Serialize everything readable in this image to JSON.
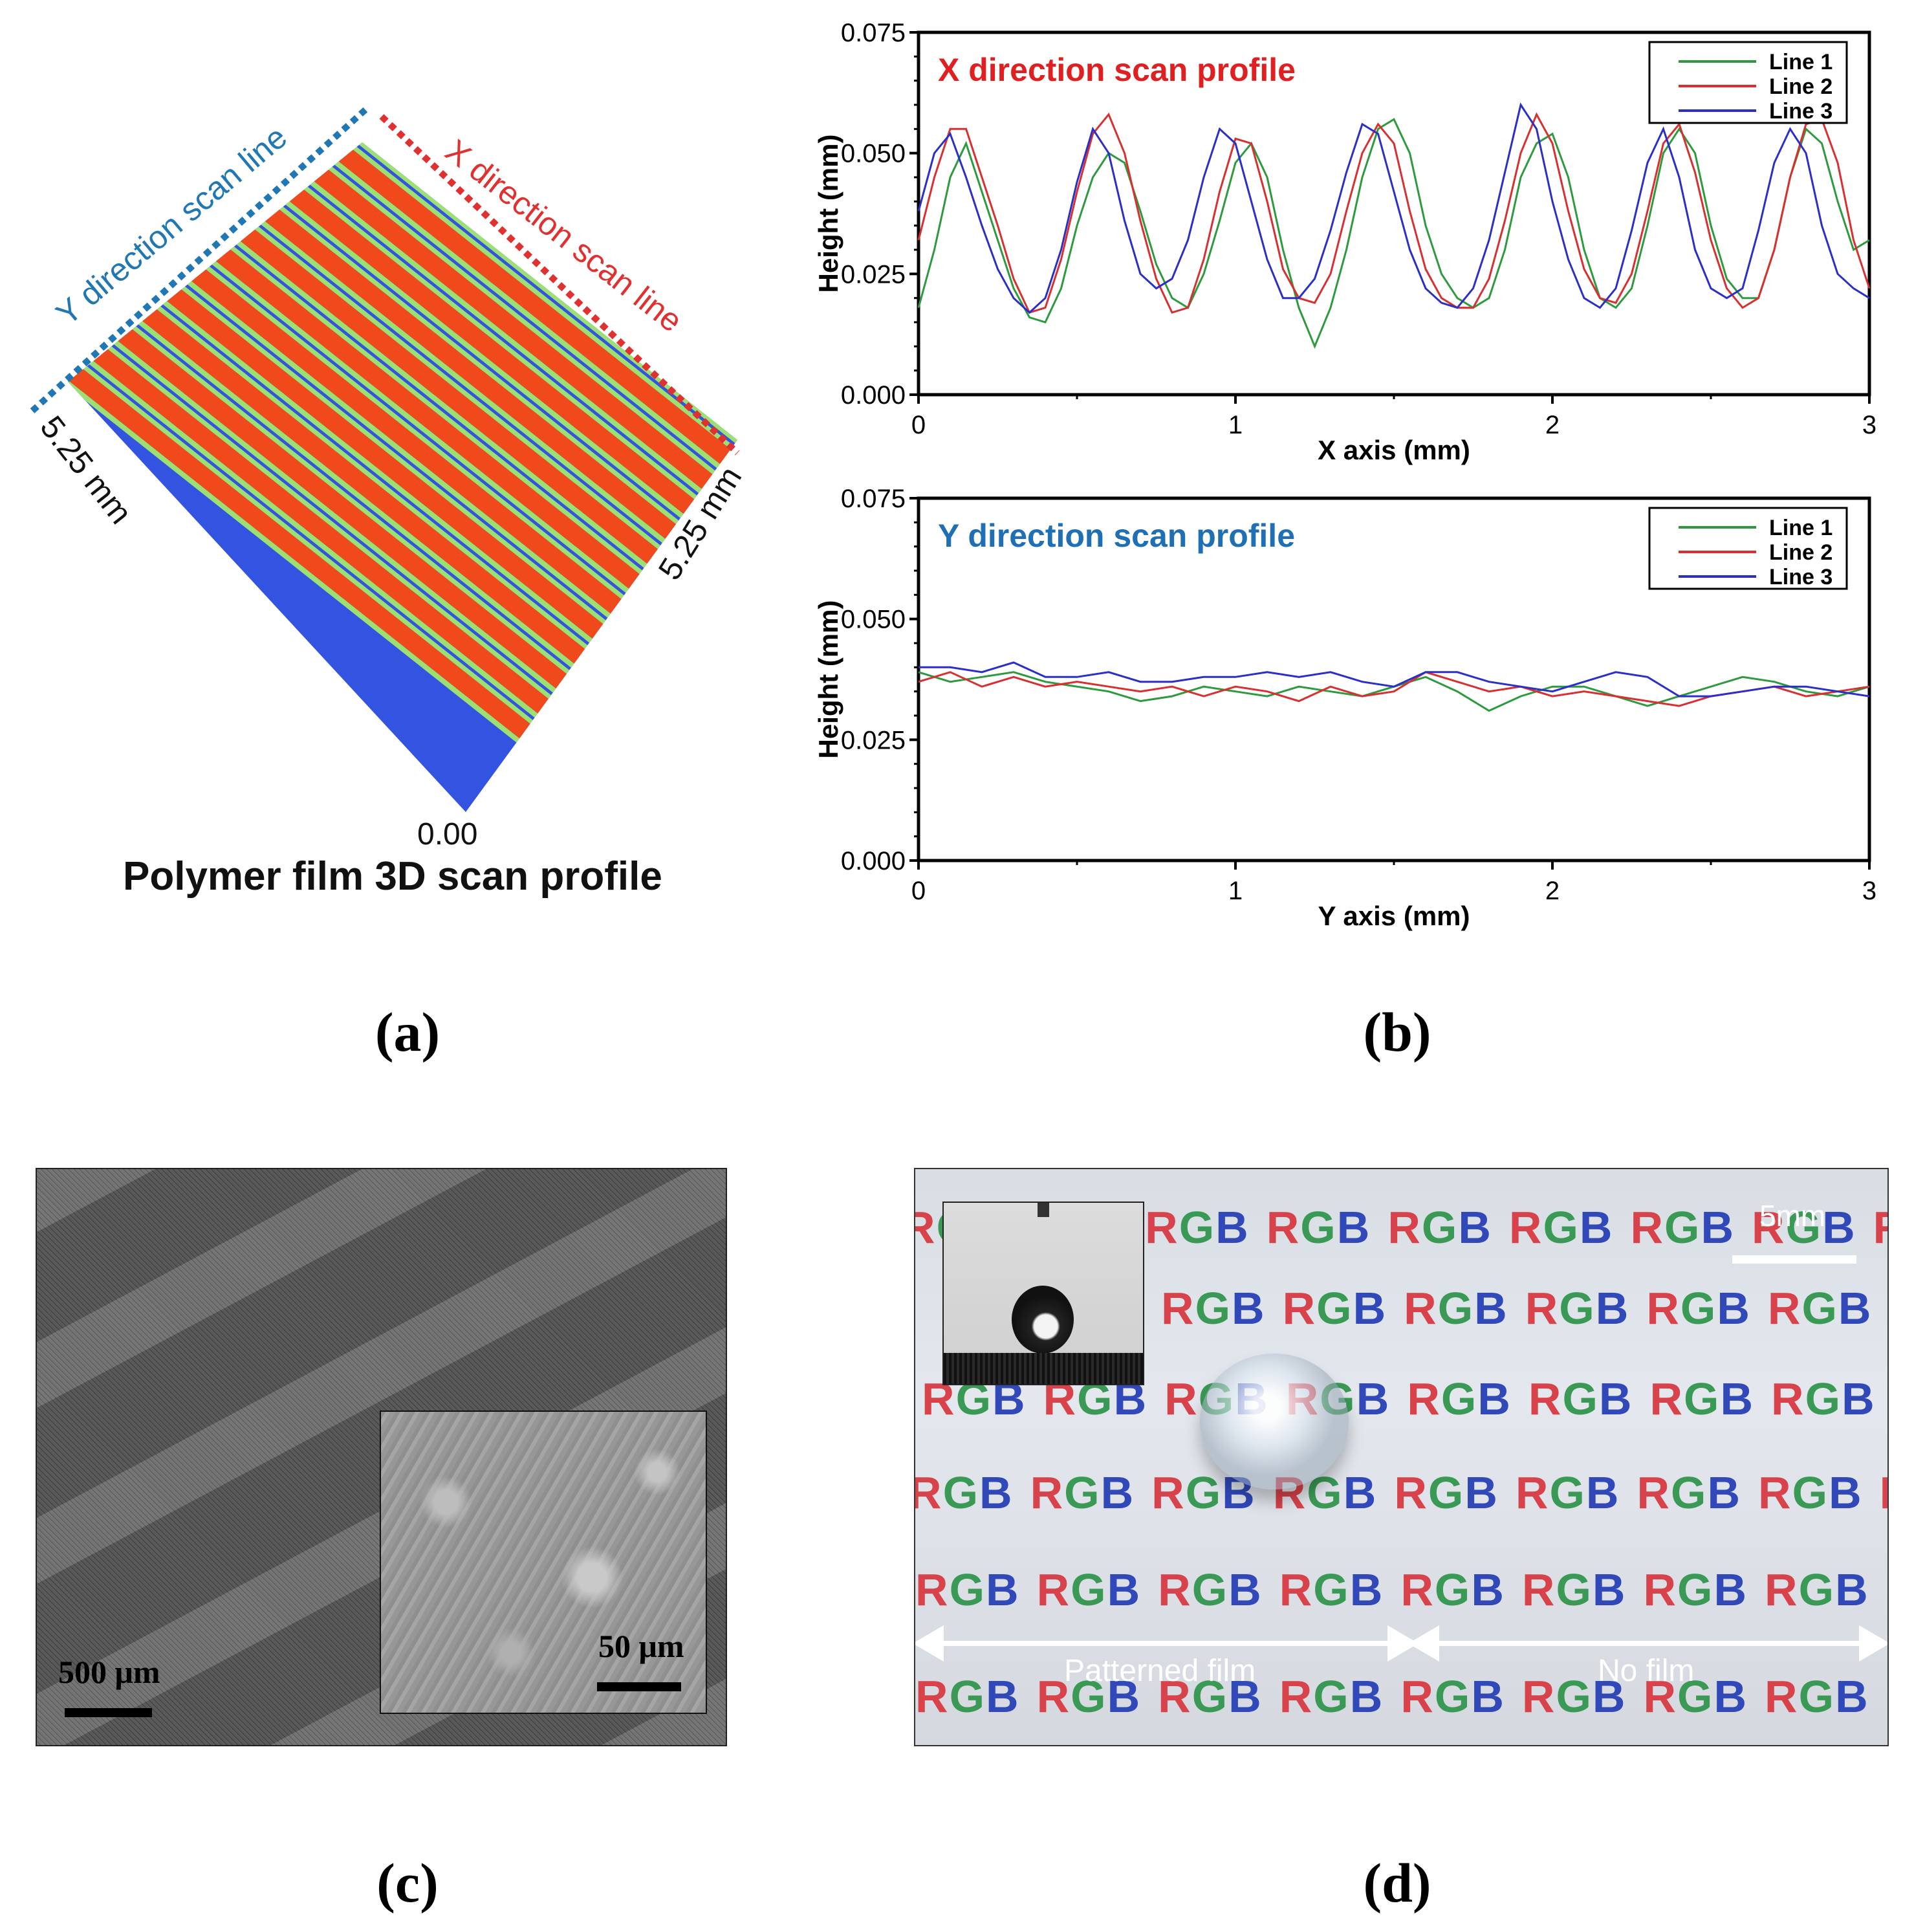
{
  "panel_a": {
    "y_scan_label": "Y direction scan line",
    "x_scan_label": "X direction scan line",
    "left_dim": "5.25 mm",
    "right_dim": "5.25 mm",
    "origin_label": "0.00",
    "title": "Polymer film 3D scan profile",
    "caption": "(a)",
    "colors": {
      "y_line": "#1f77b4",
      "x_line": "#e03030",
      "stripe_red": "#f04a1c",
      "stripe_blue": "#3354e0",
      "stripe_green": "#9be070"
    }
  },
  "panel_b": {
    "caption": "(b)"
  },
  "chart_data": [
    {
      "type": "line",
      "title": "X direction scan profile",
      "title_color": "#e02020",
      "xlabel": "X axis (mm)",
      "ylabel": "Height (mm)",
      "xlim": [
        0,
        3
      ],
      "ylim": [
        0,
        0.075
      ],
      "xticks": [
        "0",
        "1",
        "2",
        "3"
      ],
      "yticks": [
        "0.000",
        "0.025",
        "0.050",
        "0.075"
      ],
      "legend": [
        "Line 1",
        "Line 2",
        "Line 3"
      ],
      "legend_position": "top-right",
      "series": [
        {
          "name": "Line 1",
          "color": "#2e9a3e",
          "x": [
            0,
            0.05,
            0.1,
            0.15,
            0.2,
            0.25,
            0.3,
            0.35,
            0.4,
            0.45,
            0.5,
            0.55,
            0.6,
            0.65,
            0.7,
            0.75,
            0.8,
            0.85,
            0.9,
            0.95,
            1.0,
            1.05,
            1.1,
            1.15,
            1.2,
            1.25,
            1.3,
            1.35,
            1.4,
            1.45,
            1.5,
            1.55,
            1.6,
            1.65,
            1.7,
            1.75,
            1.8,
            1.85,
            1.9,
            1.95,
            2.0,
            2.05,
            2.1,
            2.15,
            2.2,
            2.25,
            2.3,
            2.35,
            2.4,
            2.45,
            2.5,
            2.55,
            2.6,
            2.65,
            2.7,
            2.75,
            2.8,
            2.85,
            2.9,
            2.95,
            3.0
          ],
          "y": [
            0.018,
            0.03,
            0.045,
            0.052,
            0.042,
            0.032,
            0.022,
            0.016,
            0.015,
            0.022,
            0.035,
            0.045,
            0.05,
            0.048,
            0.038,
            0.027,
            0.02,
            0.018,
            0.025,
            0.036,
            0.048,
            0.052,
            0.045,
            0.03,
            0.018,
            0.01,
            0.018,
            0.03,
            0.045,
            0.055,
            0.057,
            0.05,
            0.035,
            0.025,
            0.02,
            0.018,
            0.02,
            0.03,
            0.045,
            0.052,
            0.054,
            0.045,
            0.03,
            0.02,
            0.018,
            0.022,
            0.035,
            0.05,
            0.055,
            0.05,
            0.035,
            0.024,
            0.02,
            0.02,
            0.03,
            0.045,
            0.055,
            0.052,
            0.04,
            0.03,
            0.032
          ]
        },
        {
          "name": "Line 2",
          "color": "#d83030",
          "x": [
            0,
            0.05,
            0.1,
            0.15,
            0.2,
            0.25,
            0.3,
            0.35,
            0.4,
            0.45,
            0.5,
            0.55,
            0.6,
            0.65,
            0.7,
            0.75,
            0.8,
            0.85,
            0.9,
            0.95,
            1.0,
            1.05,
            1.1,
            1.15,
            1.2,
            1.25,
            1.3,
            1.35,
            1.4,
            1.45,
            1.5,
            1.55,
            1.6,
            1.65,
            1.7,
            1.75,
            1.8,
            1.85,
            1.9,
            1.95,
            2.0,
            2.05,
            2.1,
            2.15,
            2.2,
            2.25,
            2.3,
            2.35,
            2.4,
            2.45,
            2.5,
            2.55,
            2.6,
            2.65,
            2.7,
            2.75,
            2.8,
            2.85,
            2.9,
            2.95,
            3.0
          ],
          "y": [
            0.032,
            0.045,
            0.055,
            0.055,
            0.045,
            0.035,
            0.024,
            0.017,
            0.018,
            0.028,
            0.042,
            0.054,
            0.058,
            0.05,
            0.036,
            0.024,
            0.017,
            0.018,
            0.028,
            0.042,
            0.053,
            0.052,
            0.04,
            0.026,
            0.02,
            0.019,
            0.025,
            0.038,
            0.05,
            0.056,
            0.052,
            0.038,
            0.026,
            0.02,
            0.018,
            0.018,
            0.024,
            0.036,
            0.05,
            0.058,
            0.052,
            0.038,
            0.026,
            0.02,
            0.019,
            0.025,
            0.038,
            0.052,
            0.056,
            0.046,
            0.032,
            0.022,
            0.018,
            0.02,
            0.03,
            0.045,
            0.056,
            0.057,
            0.048,
            0.032,
            0.022
          ]
        },
        {
          "name": "Line 3",
          "color": "#2a2fc8",
          "x": [
            0,
            0.05,
            0.1,
            0.15,
            0.2,
            0.25,
            0.3,
            0.35,
            0.4,
            0.45,
            0.5,
            0.55,
            0.6,
            0.65,
            0.7,
            0.75,
            0.8,
            0.85,
            0.9,
            0.95,
            1.0,
            1.05,
            1.1,
            1.15,
            1.2,
            1.25,
            1.3,
            1.35,
            1.4,
            1.45,
            1.5,
            1.55,
            1.6,
            1.65,
            1.7,
            1.75,
            1.8,
            1.85,
            1.9,
            1.95,
            2.0,
            2.05,
            2.1,
            2.15,
            2.2,
            2.25,
            2.3,
            2.35,
            2.4,
            2.45,
            2.5,
            2.55,
            2.6,
            2.65,
            2.7,
            2.75,
            2.8,
            2.85,
            2.9,
            2.95,
            3.0
          ],
          "y": [
            0.038,
            0.05,
            0.054,
            0.045,
            0.035,
            0.026,
            0.02,
            0.017,
            0.02,
            0.03,
            0.044,
            0.055,
            0.05,
            0.036,
            0.025,
            0.022,
            0.024,
            0.032,
            0.045,
            0.055,
            0.052,
            0.04,
            0.028,
            0.02,
            0.02,
            0.024,
            0.034,
            0.046,
            0.056,
            0.054,
            0.042,
            0.03,
            0.022,
            0.019,
            0.018,
            0.022,
            0.032,
            0.046,
            0.06,
            0.055,
            0.04,
            0.028,
            0.02,
            0.018,
            0.022,
            0.034,
            0.048,
            0.055,
            0.045,
            0.03,
            0.022,
            0.02,
            0.022,
            0.034,
            0.048,
            0.055,
            0.05,
            0.035,
            0.025,
            0.022,
            0.02
          ]
        }
      ]
    },
    {
      "type": "line",
      "title": "Y direction scan profile",
      "title_color": "#1f6fb4",
      "xlabel": "Y axis (mm)",
      "ylabel": "Height (mm)",
      "xlim": [
        0,
        3
      ],
      "ylim": [
        0,
        0.075
      ],
      "xticks": [
        "0",
        "1",
        "2",
        "3"
      ],
      "yticks": [
        "0.000",
        "0.025",
        "0.050",
        "0.075"
      ],
      "legend": [
        "Line 1",
        "Line 2",
        "Line 3"
      ],
      "legend_position": "top-right",
      "series": [
        {
          "name": "Line 1",
          "color": "#2e9a3e",
          "x": [
            0,
            0.1,
            0.2,
            0.3,
            0.4,
            0.5,
            0.6,
            0.7,
            0.8,
            0.9,
            1.0,
            1.1,
            1.2,
            1.3,
            1.4,
            1.5,
            1.6,
            1.7,
            1.8,
            1.9,
            2.0,
            2.1,
            2.2,
            2.3,
            2.4,
            2.5,
            2.6,
            2.7,
            2.8,
            2.9,
            3.0
          ],
          "y": [
            0.039,
            0.037,
            0.038,
            0.039,
            0.037,
            0.036,
            0.035,
            0.033,
            0.034,
            0.036,
            0.035,
            0.034,
            0.036,
            0.035,
            0.034,
            0.036,
            0.038,
            0.035,
            0.031,
            0.034,
            0.036,
            0.036,
            0.034,
            0.032,
            0.034,
            0.036,
            0.038,
            0.037,
            0.035,
            0.034,
            0.036
          ]
        },
        {
          "name": "Line 2",
          "color": "#d83030",
          "x": [
            0,
            0.1,
            0.2,
            0.3,
            0.4,
            0.5,
            0.6,
            0.7,
            0.8,
            0.9,
            1.0,
            1.1,
            1.2,
            1.3,
            1.4,
            1.5,
            1.6,
            1.7,
            1.8,
            1.9,
            2.0,
            2.1,
            2.2,
            2.3,
            2.4,
            2.5,
            2.6,
            2.7,
            2.8,
            2.9,
            3.0
          ],
          "y": [
            0.037,
            0.039,
            0.036,
            0.038,
            0.036,
            0.037,
            0.036,
            0.035,
            0.036,
            0.034,
            0.036,
            0.035,
            0.033,
            0.036,
            0.034,
            0.035,
            0.039,
            0.037,
            0.035,
            0.036,
            0.034,
            0.035,
            0.034,
            0.033,
            0.032,
            0.034,
            0.035,
            0.036,
            0.034,
            0.035,
            0.036
          ]
        },
        {
          "name": "Line 3",
          "color": "#2a2fc8",
          "x": [
            0,
            0.1,
            0.2,
            0.3,
            0.4,
            0.5,
            0.6,
            0.7,
            0.8,
            0.9,
            1.0,
            1.1,
            1.2,
            1.3,
            1.4,
            1.5,
            1.6,
            1.7,
            1.8,
            1.9,
            2.0,
            2.1,
            2.2,
            2.3,
            2.4,
            2.5,
            2.6,
            2.7,
            2.8,
            2.9,
            3.0
          ],
          "y": [
            0.04,
            0.04,
            0.039,
            0.041,
            0.038,
            0.038,
            0.039,
            0.037,
            0.037,
            0.038,
            0.038,
            0.039,
            0.038,
            0.039,
            0.037,
            0.036,
            0.039,
            0.039,
            0.037,
            0.036,
            0.035,
            0.037,
            0.039,
            0.038,
            0.034,
            0.034,
            0.035,
            0.036,
            0.036,
            0.035,
            0.034
          ]
        }
      ]
    }
  ],
  "panel_c": {
    "scale_main": "500 μm",
    "scale_inset": "50 μm",
    "caption": "(c)"
  },
  "panel_d": {
    "rgb_text": "RGB",
    "scale_label": "5mm",
    "left_arrow_label": "Patterned film",
    "right_arrow_label": "No film",
    "caption": "(d)"
  }
}
